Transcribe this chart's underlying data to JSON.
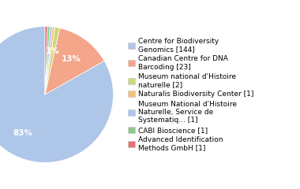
{
  "labels": [
    "Centre for Biodiversity\nGenomics [144]",
    "Canadian Centre for DNA\nBarcoding [23]",
    "Museum national d'Histoire\nnaturelle [2]",
    "Naturalis Biodiversity Center [1]",
    "Museum National d'Histoire\nNaturelle, Service de\nSystematiq... [1]",
    "CABI Bioscience [1]",
    "Advanced Identification\nMethods GmbH [1]"
  ],
  "values": [
    144,
    23,
    2,
    1,
    1,
    1,
    1
  ],
  "colors": [
    "#aec6e8",
    "#f4a58a",
    "#cdd97a",
    "#f4c07a",
    "#aec6ef",
    "#8dc88d",
    "#e87070"
  ],
  "background_color": "#ffffff",
  "text_color": "#ffffff",
  "startangle": 90
}
